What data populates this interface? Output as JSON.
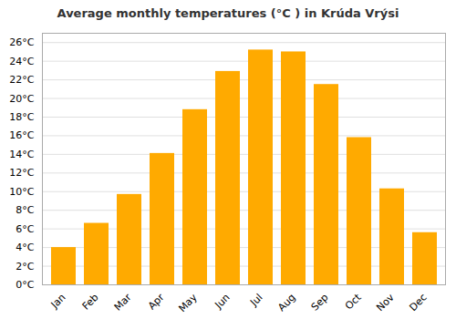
{
  "chart_data": {
    "type": "bar",
    "title": "Average monthly temperatures (°C ) in Krúda Vrýsi",
    "categories": [
      "Jan",
      "Feb",
      "Mar",
      "Apr",
      "May",
      "Jun",
      "Jul",
      "Aug",
      "Sep",
      "Oct",
      "Nov",
      "Dec"
    ],
    "values": [
      4.0,
      6.6,
      9.7,
      14.1,
      18.8,
      22.9,
      25.2,
      25.0,
      21.5,
      15.8,
      10.3,
      5.6
    ],
    "color": "#FFAA00",
    "ylim": [
      0,
      27
    ],
    "yticks": [
      {
        "value": 0,
        "label": "0°C"
      },
      {
        "value": 2,
        "label": "2°C"
      },
      {
        "value": 4,
        "label": "4°C"
      },
      {
        "value": 6,
        "label": "6°C"
      },
      {
        "value": 8,
        "label": "8°C"
      },
      {
        "value": 10,
        "label": "10°C"
      },
      {
        "value": 12,
        "label": "12°C"
      },
      {
        "value": 14,
        "label": "14°C"
      },
      {
        "value": 16,
        "label": "16°C"
      },
      {
        "value": 18,
        "label": "18°C"
      },
      {
        "value": 20,
        "label": "20°C"
      },
      {
        "value": 22,
        "label": "22°C"
      },
      {
        "value": 24,
        "label": "24°C"
      },
      {
        "value": 26,
        "label": "26°C"
      }
    ],
    "grid": true
  }
}
